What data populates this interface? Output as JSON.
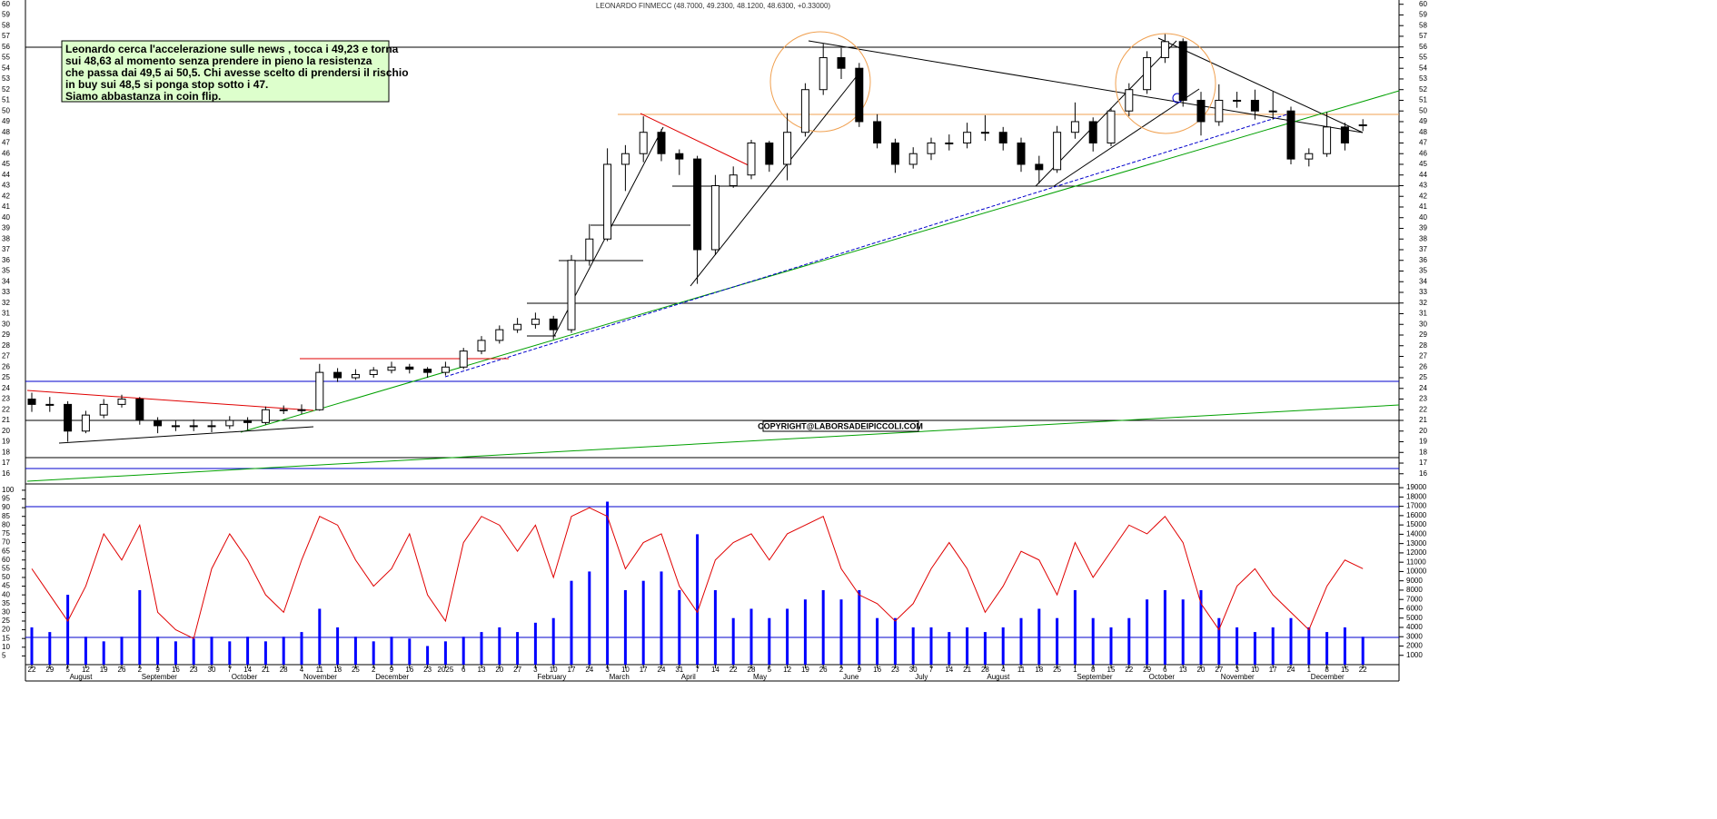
{
  "chart_data": {
    "type": "candlestick",
    "title": "LEONARDO FINMECC (48.7000, 49.2300, 48.1200, 48.6300, +0.33000)",
    "annotations": [
      "Leonardo cerca l'accelerazione sulle news , tocca i 49,23 e torna",
      "sui 48,63 al momento senza prendere in pieno la resistenza",
      "che passa dai 49,5 ai 50,5. Chi avesse scelto di prendersi il rischio",
      "in buy sui 48,5 si ponga stop sotto i 47.",
      "Siamo abbastanza in coin flip."
    ],
    "watermark": "COPYRIGHT@LABORSADEIPICCOLI.COM",
    "categories": [
      "22",
      "29",
      "5",
      "12",
      "19",
      "26",
      "2",
      "9",
      "16",
      "23",
      "30",
      "7",
      "14",
      "21",
      "28",
      "4",
      "11",
      "18",
      "25",
      "2",
      "9",
      "16",
      "23",
      "2025",
      "6",
      "13",
      "20",
      "27",
      "3",
      "10",
      "17",
      "24",
      "3",
      "10",
      "17",
      "24",
      "31",
      "7",
      "14",
      "22",
      "28",
      "5",
      "12",
      "19",
      "26",
      "2",
      "9",
      "16",
      "23",
      "30",
      "7",
      "14",
      "21",
      "28",
      "4",
      "11",
      "18",
      "25",
      "1",
      "8",
      "15",
      "22",
      "29",
      "6",
      "13",
      "20",
      "27",
      "3",
      "10",
      "17",
      "24",
      "1",
      "8",
      "15",
      "22"
    ],
    "months": [
      null,
      null,
      "August",
      null,
      null,
      null,
      "September",
      null,
      null,
      null,
      null,
      "October",
      null,
      null,
      null,
      "November",
      null,
      null,
      null,
      "December",
      null,
      null,
      null,
      null,
      null,
      null,
      null,
      null,
      "February",
      null,
      null,
      null,
      "March",
      null,
      null,
      null,
      "April",
      null,
      null,
      null,
      "May",
      null,
      null,
      null,
      null,
      "June",
      null,
      null,
      null,
      "July",
      null,
      null,
      null,
      "August",
      null,
      null,
      null,
      null,
      "September",
      null,
      null,
      null,
      "October",
      null,
      null,
      null,
      "November",
      null,
      null,
      null,
      null,
      "December",
      null,
      null,
      null
    ],
    "open": [
      23,
      22.5,
      22.5,
      20,
      21.5,
      22.5,
      23,
      21,
      20.5,
      20.5,
      20.5,
      20.5,
      21,
      20.8,
      22,
      22,
      22,
      25.5,
      25,
      25.3,
      25.7,
      26,
      25.8,
      25.5,
      26,
      27.5,
      28.5,
      29.5,
      30,
      30.5,
      29.5,
      36,
      38,
      45,
      46,
      48,
      46,
      45.5,
      37,
      43,
      44,
      47,
      45,
      48,
      52,
      55,
      54,
      49,
      47,
      45,
      46,
      47,
      47,
      48,
      48,
      47,
      45,
      44.5,
      48,
      49,
      47,
      50,
      52,
      55,
      56.5,
      51,
      49,
      51,
      51,
      50,
      50,
      45.5,
      46,
      48.5,
      48.7
    ],
    "high": [
      23.6,
      23.2,
      22.8,
      21.9,
      23,
      23.4,
      23.2,
      21.3,
      21,
      21.1,
      21,
      21.4,
      21.3,
      22.3,
      22.4,
      22.5,
      26.3,
      25.9,
      25.8,
      26,
      26.5,
      26.3,
      26,
      26.5,
      27.8,
      28.9,
      29.9,
      30.6,
      31.1,
      30.8,
      36.5,
      39.4,
      46.5,
      46.8,
      49.5,
      48.3,
      46.4,
      45.8,
      44,
      44.8,
      47.3,
      47.2,
      49.8,
      52.6,
      56.3,
      55.9,
      54.5,
      49.7,
      47.4,
      46.6,
      47.5,
      47.8,
      48.9,
      49.6,
      48.5,
      47.5,
      45.8,
      48.6,
      50.8,
      49.4,
      50.3,
      52.6,
      55.6,
      57.2,
      56.8,
      51.8,
      52.5,
      51.8,
      52,
      51.8,
      50.4,
      46.5,
      49.9,
      48.9,
      49.23
    ],
    "low": [
      21.8,
      21.8,
      19,
      19.8,
      21.2,
      22.2,
      20.6,
      19.8,
      20,
      20,
      19.9,
      20.2,
      20.1,
      20.6,
      21.6,
      21.6,
      21.9,
      24.6,
      24.8,
      25,
      25.4,
      25.4,
      25,
      25.2,
      25.8,
      27.2,
      28.2,
      29.2,
      29.6,
      28.6,
      29.2,
      35.5,
      37.8,
      42.5,
      45.2,
      45.3,
      44,
      33.8,
      36.5,
      42.8,
      43.6,
      44.3,
      43.5,
      47.6,
      51.5,
      53,
      48.5,
      46.5,
      44.2,
      44.6,
      45.4,
      46.3,
      46.5,
      47.2,
      46.3,
      44.3,
      43.2,
      44.2,
      47.4,
      46.2,
      46.7,
      49.5,
      51.6,
      54.5,
      50.4,
      47.7,
      48.6,
      50.3,
      49.2,
      49.2,
      45,
      44.8,
      45.7,
      46.3,
      48.12
    ],
    "close": [
      22.5,
      22.5,
      20,
      21.5,
      22.5,
      23,
      21,
      20.5,
      20.5,
      20.5,
      20.5,
      21,
      20.8,
      22,
      22,
      22,
      25.5,
      25,
      25.3,
      25.7,
      26,
      25.8,
      25.5,
      26,
      27.5,
      28.5,
      29.5,
      30,
      30.5,
      29.5,
      36,
      38,
      45,
      46,
      48,
      46,
      45.5,
      37,
      43,
      44,
      47,
      45,
      48,
      52,
      55,
      54,
      49,
      47,
      45,
      46,
      47,
      47,
      48,
      48,
      47,
      45,
      44.5,
      48,
      49,
      47,
      50,
      52,
      55,
      56.5,
      51,
      49,
      51,
      51,
      50,
      50,
      45.5,
      46,
      48.5,
      47,
      48.63
    ],
    "ylim": [
      15.3,
      60.4
    ],
    "yticks": [
      16,
      17,
      18,
      19,
      20,
      21,
      22,
      23,
      24,
      25,
      26,
      27,
      28,
      29,
      30,
      31,
      32,
      33,
      34,
      35,
      36,
      37,
      38,
      39,
      40,
      41,
      42,
      43,
      44,
      45,
      46,
      47,
      48,
      49,
      50,
      51,
      52,
      53,
      54,
      55,
      56,
      57,
      58,
      59,
      60
    ],
    "indicator": {
      "type": "line",
      "color": "#e00000",
      "ylim": [
        0,
        103.6
      ],
      "yticks": [
        5,
        10,
        15,
        20,
        25,
        30,
        35,
        40,
        45,
        50,
        55,
        60,
        65,
        70,
        75,
        80,
        85,
        90,
        95,
        100
      ],
      "values": [
        55,
        40,
        25,
        45,
        75,
        60,
        80,
        30,
        20,
        15,
        55,
        75,
        60,
        40,
        30,
        60,
        85,
        80,
        60,
        45,
        55,
        75,
        40,
        25,
        70,
        85,
        80,
        65,
        80,
        50,
        85,
        90,
        85,
        55,
        70,
        75,
        45,
        30,
        60,
        70,
        75,
        60,
        75,
        80,
        85,
        55,
        40,
        35,
        25,
        35,
        55,
        70,
        55,
        30,
        45,
        65,
        60,
        40,
        70,
        50,
        65,
        80,
        75,
        85,
        70,
        35,
        20,
        45,
        55,
        40,
        30,
        20,
        45,
        60,
        55
      ]
    },
    "volume": {
      "type": "bar",
      "color": "#0000ff",
      "y2lim": [
        0,
        19400
      ],
      "y2ticks": [
        1000,
        2000,
        3000,
        4000,
        5000,
        6000,
        7000,
        8000,
        9000,
        10000,
        11000,
        12000,
        13000,
        14000,
        15000,
        16000,
        17000,
        18000,
        19000
      ],
      "values": [
        4000,
        3500,
        7500,
        3000,
        2500,
        3000,
        8000,
        3000,
        2500,
        2800,
        3000,
        2500,
        3000,
        2500,
        3000,
        3500,
        6000,
        4000,
        3000,
        2500,
        3000,
        2800,
        2000,
        2500,
        3000,
        3500,
        4000,
        3500,
        4500,
        5000,
        9000,
        10000,
        17500,
        8000,
        9000,
        10000,
        8000,
        14000,
        8000,
        5000,
        6000,
        5000,
        6000,
        7000,
        8000,
        7000,
        8000,
        5000,
        5000,
        4000,
        4000,
        3500,
        4000,
        3500,
        4000,
        5000,
        6000,
        5000,
        8000,
        5000,
        4000,
        5000,
        7000,
        8000,
        7000,
        8000,
        5000,
        4000,
        3500,
        4000,
        5000,
        4000,
        3500,
        4000,
        3000
      ]
    }
  }
}
